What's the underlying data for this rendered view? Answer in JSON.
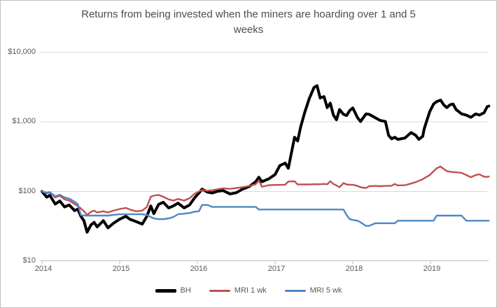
{
  "chart": {
    "title_line1": "Returns from being invested when the miners are hoarding over 1 and 5",
    "title_line2": "weeks"
  },
  "chart_data": {
    "type": "line",
    "title": "Returns from being invested when the miners are hoarding over 1 and 5 weeks",
    "xlabel": "",
    "ylabel": "",
    "grid": true,
    "legend_position": "bottom",
    "style": {
      "gridline_color": "#d9d9d9",
      "axis_color": "#bfbfbf",
      "title_color": "#4d4d4d",
      "tick_label_color": "#595959"
    },
    "x_axis": {
      "tick_labels": [
        "2014",
        "2015",
        "2016",
        "2017",
        "2018",
        "2019"
      ],
      "tick_values": [
        2014,
        2015,
        2016,
        2017,
        2018,
        2019
      ],
      "range": [
        2014,
        2019.79
      ]
    },
    "y_axis": {
      "scale": "log",
      "tick_labels": [
        "$10",
        "$100",
        "$1,000",
        "$10,000"
      ],
      "tick_values": [
        10,
        100,
        1000,
        10000
      ],
      "range": [
        10,
        10000
      ]
    },
    "series": [
      {
        "id": "bh",
        "name": "BH",
        "color": "#000000",
        "width": 4
      },
      {
        "id": "mri-1wk",
        "name": "MRI 1 wk",
        "color": "#c0504d",
        "width": 2.4
      },
      {
        "id": "mri-5wk",
        "name": "MRI 5 wk",
        "color": "#4f86c6",
        "width": 2.4
      }
    ],
    "columns": [
      "year",
      "BH",
      "MRI 1 wk",
      "MRI 5 wk"
    ],
    "rows": [
      [
        2014.0,
        100,
        100,
        100
      ],
      [
        2014.06,
        83,
        94,
        96
      ],
      [
        2014.1,
        88,
        97,
        98
      ],
      [
        2014.17,
        66,
        82,
        85
      ],
      [
        2014.23,
        73,
        87,
        90
      ],
      [
        2014.29,
        60,
        77,
        82
      ],
      [
        2014.35,
        64,
        74,
        79
      ],
      [
        2014.42,
        53,
        66,
        71
      ],
      [
        2014.46,
        56,
        62,
        66
      ],
      [
        2014.5,
        44,
        57,
        46
      ],
      [
        2014.54,
        38,
        52,
        45
      ],
      [
        2014.58,
        26,
        46,
        45
      ],
      [
        2014.63,
        33,
        51,
        45
      ],
      [
        2014.67,
        36,
        53,
        45
      ],
      [
        2014.71,
        31,
        50,
        45
      ],
      [
        2014.79,
        38,
        52,
        45
      ],
      [
        2014.85,
        30,
        50,
        45
      ],
      [
        2014.92,
        35,
        53,
        46
      ],
      [
        2015.0,
        40,
        56,
        47
      ],
      [
        2015.08,
        44,
        58,
        47
      ],
      [
        2015.13,
        40,
        55,
        47
      ],
      [
        2015.21,
        37,
        52,
        47
      ],
      [
        2015.29,
        34,
        53,
        47
      ],
      [
        2015.35,
        44,
        60,
        46
      ],
      [
        2015.4,
        62,
        84,
        43
      ],
      [
        2015.44,
        48,
        87,
        41
      ],
      [
        2015.5,
        65,
        89,
        40
      ],
      [
        2015.56,
        70,
        84,
        40
      ],
      [
        2015.63,
        58,
        77,
        41
      ],
      [
        2015.69,
        62,
        74,
        43
      ],
      [
        2015.75,
        68,
        78,
        47
      ],
      [
        2015.83,
        58,
        74,
        48
      ],
      [
        2015.9,
        64,
        80,
        49
      ],
      [
        2015.96,
        80,
        92,
        51
      ],
      [
        2016.02,
        95,
        100,
        52
      ],
      [
        2016.06,
        108,
        105,
        64
      ],
      [
        2016.13,
        98,
        102,
        64
      ],
      [
        2016.19,
        95,
        104,
        60
      ],
      [
        2016.25,
        100,
        107,
        60
      ],
      [
        2016.33,
        103,
        111,
        60
      ],
      [
        2016.42,
        92,
        109,
        60
      ],
      [
        2016.5,
        96,
        112,
        60
      ],
      [
        2016.58,
        108,
        115,
        60
      ],
      [
        2016.67,
        118,
        120,
        60
      ],
      [
        2016.75,
        138,
        127,
        60
      ],
      [
        2016.79,
        160,
        144,
        55
      ],
      [
        2016.83,
        138,
        117,
        55
      ],
      [
        2016.92,
        152,
        123,
        55
      ],
      [
        2017.0,
        175,
        124,
        55
      ],
      [
        2017.06,
        235,
        124,
        55
      ],
      [
        2017.13,
        255,
        125,
        55
      ],
      [
        2017.17,
        215,
        139,
        55
      ],
      [
        2017.25,
        600,
        140,
        55
      ],
      [
        2017.29,
        530,
        126,
        55
      ],
      [
        2017.33,
        850,
        126,
        55
      ],
      [
        2017.38,
        1350,
        126,
        55
      ],
      [
        2017.44,
        2150,
        126,
        55
      ],
      [
        2017.5,
        3100,
        127,
        55
      ],
      [
        2017.54,
        3300,
        127,
        55
      ],
      [
        2017.58,
        2200,
        127,
        55
      ],
      [
        2017.63,
        2300,
        128,
        55
      ],
      [
        2017.67,
        1600,
        127,
        55
      ],
      [
        2017.71,
        1850,
        140,
        55
      ],
      [
        2017.75,
        1250,
        128,
        55
      ],
      [
        2017.79,
        1070,
        122,
        55
      ],
      [
        2017.83,
        1500,
        115,
        55
      ],
      [
        2017.88,
        1280,
        132,
        55
      ],
      [
        2017.92,
        1230,
        126,
        46
      ],
      [
        2017.96,
        1450,
        125,
        40
      ],
      [
        2018.0,
        1580,
        125,
        39
      ],
      [
        2018.06,
        1150,
        120,
        38
      ],
      [
        2018.1,
        1010,
        115,
        36
      ],
      [
        2018.17,
        1300,
        112,
        32
      ],
      [
        2018.21,
        1280,
        119,
        32
      ],
      [
        2018.29,
        1140,
        120,
        35
      ],
      [
        2018.35,
        1050,
        119,
        35
      ],
      [
        2018.42,
        1010,
        120,
        35
      ],
      [
        2018.46,
        640,
        120,
        35
      ],
      [
        2018.5,
        570,
        121,
        35
      ],
      [
        2018.54,
        600,
        128,
        35
      ],
      [
        2018.58,
        560,
        122,
        38
      ],
      [
        2018.67,
        585,
        123,
        38
      ],
      [
        2018.75,
        700,
        130,
        38
      ],
      [
        2018.81,
        640,
        136,
        38
      ],
      [
        2018.85,
        560,
        142,
        38
      ],
      [
        2018.9,
        620,
        150,
        38
      ],
      [
        2018.92,
        800,
        155,
        38
      ],
      [
        2018.99,
        1400,
        172,
        38
      ],
      [
        2019.04,
        1800,
        195,
        38
      ],
      [
        2019.08,
        1950,
        215,
        45
      ],
      [
        2019.13,
        2050,
        228,
        45
      ],
      [
        2019.17,
        1750,
        210,
        45
      ],
      [
        2019.21,
        1600,
        196,
        45
      ],
      [
        2019.25,
        1750,
        192,
        45
      ],
      [
        2019.29,
        1800,
        190,
        45
      ],
      [
        2019.33,
        1500,
        188,
        45
      ],
      [
        2019.4,
        1300,
        185,
        45
      ],
      [
        2019.46,
        1250,
        172,
        38
      ],
      [
        2019.52,
        1160,
        160,
        38
      ],
      [
        2019.58,
        1300,
        172,
        38
      ],
      [
        2019.63,
        1250,
        176,
        38
      ],
      [
        2019.69,
        1350,
        163,
        38
      ],
      [
        2019.73,
        1650,
        162,
        38
      ],
      [
        2019.75,
        1680,
        164,
        38
      ]
    ]
  }
}
